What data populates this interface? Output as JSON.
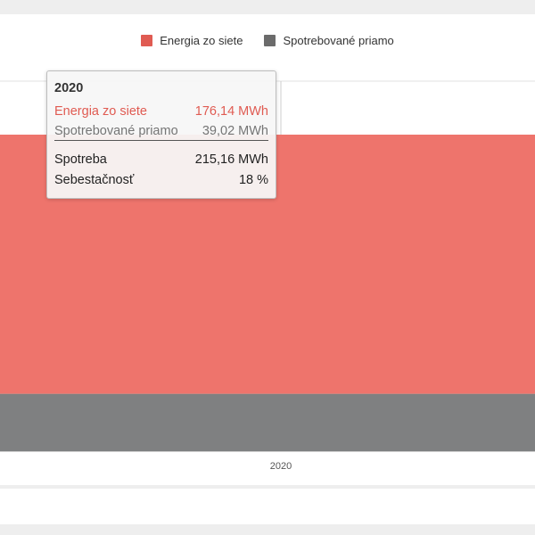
{
  "chart_data": {
    "type": "bar",
    "stacked": true,
    "categories": [
      "2020"
    ],
    "series": [
      {
        "name": "Energia zo siete",
        "values": [
          176.14
        ],
        "color": "#ee746c"
      },
      {
        "name": "Spotrebované priamo",
        "values": [
          39.02
        ],
        "color": "#7f8081"
      }
    ],
    "x_tick_labels": [
      "2020"
    ],
    "legend_position": "top-center",
    "grid": true
  },
  "legend": {
    "items": [
      {
        "label": "Energia zo siete",
        "color": "#e05b52"
      },
      {
        "label": "Spotrebované priamo",
        "color": "#6b6b6b"
      }
    ]
  },
  "tooltip": {
    "title": "2020",
    "rows": [
      {
        "name": "Energia zo siete",
        "value": "176,14 MWh",
        "color": "#e05b52"
      },
      {
        "name": "Spotrebované priamo",
        "value": "39,02 MWh",
        "color": "#757575"
      },
      {
        "name": "Spotreba",
        "value": "215,16 MWh",
        "color": "#222222"
      },
      {
        "name": "Sebestačnosť",
        "value": "18 %",
        "color": "#222222"
      }
    ]
  }
}
